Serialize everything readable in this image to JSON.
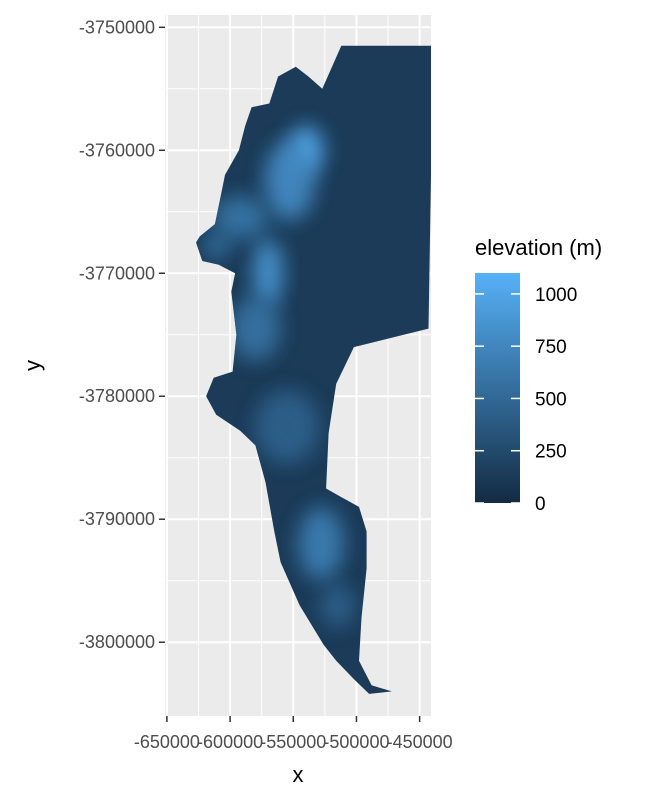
{
  "chart_data": {
    "type": "heatmap",
    "title": "",
    "xlabel": "x",
    "ylabel": "y",
    "xlim": [
      -651500,
      -441000
    ],
    "ylim": [
      -3806000,
      -3749000
    ],
    "grid": true,
    "x_ticks": [
      {
        "value": -650000,
        "label": "-650000"
      },
      {
        "value": -600000,
        "label": "-600000"
      },
      {
        "value": -550000,
        "label": "-550000"
      },
      {
        "value": -500000,
        "label": "-500000"
      },
      {
        "value": -450000,
        "label": "-450000"
      }
    ],
    "y_ticks": [
      {
        "value": -3750000,
        "label": "-3750000"
      },
      {
        "value": -3760000,
        "label": "-3760000"
      },
      {
        "value": -3770000,
        "label": "-3770000"
      },
      {
        "value": -3780000,
        "label": "-3780000"
      },
      {
        "value": -3790000,
        "label": "-3790000"
      },
      {
        "value": -3800000,
        "label": "-3800000"
      }
    ],
    "legend": {
      "title": "elevation (m)",
      "position": "right",
      "range": [
        0,
        1100
      ],
      "low_color": "#132B43",
      "high_color": "#56B1F7",
      "ticks": [
        {
          "value": 0,
          "label": "0"
        },
        {
          "value": 250,
          "label": "250"
        },
        {
          "value": 500,
          "label": "500"
        },
        {
          "value": 750,
          "label": "750"
        },
        {
          "value": 1000,
          "label": "1000"
        }
      ]
    },
    "region_outline": [
      [
        -512000,
        -3751500
      ],
      [
        -441000,
        -3751500
      ],
      [
        -441000,
        -3762000
      ],
      [
        -443000,
        -3774500
      ],
      [
        -502000,
        -3776000
      ],
      [
        -516000,
        -3779000
      ],
      [
        -522000,
        -3783000
      ],
      [
        -524000,
        -3787500
      ],
      [
        -512000,
        -3788200
      ],
      [
        -498000,
        -3789000
      ],
      [
        -492000,
        -3791000
      ],
      [
        -492000,
        -3794000
      ],
      [
        -496000,
        -3798000
      ],
      [
        -498000,
        -3801500
      ],
      [
        -488000,
        -3803500
      ],
      [
        -472000,
        -3804000
      ],
      [
        -490000,
        -3804200
      ],
      [
        -502000,
        -3803000
      ],
      [
        -516000,
        -3801500
      ],
      [
        -526000,
        -3800200
      ],
      [
        -545000,
        -3797000
      ],
      [
        -560000,
        -3793500
      ],
      [
        -565000,
        -3791000
      ],
      [
        -572000,
        -3787000
      ],
      [
        -580000,
        -3784000
      ],
      [
        -592000,
        -3782800
      ],
      [
        -611000,
        -3781500
      ],
      [
        -619000,
        -3780000
      ],
      [
        -613000,
        -3778500
      ],
      [
        -598000,
        -3778000
      ],
      [
        -595000,
        -3775000
      ],
      [
        -599000,
        -3771500
      ],
      [
        -596000,
        -3770000
      ],
      [
        -609000,
        -3769300
      ],
      [
        -622000,
        -3769000
      ],
      [
        -627000,
        -3767500
      ],
      [
        -624000,
        -3767000
      ],
      [
        -612000,
        -3766000
      ],
      [
        -608000,
        -3764000
      ],
      [
        -604000,
        -3762000
      ],
      [
        -593000,
        -3760000
      ],
      [
        -588000,
        -3758000
      ],
      [
        -583000,
        -3756500
      ],
      [
        -569000,
        -3756200
      ],
      [
        -562000,
        -3754000
      ],
      [
        -548000,
        -3753200
      ],
      [
        -538000,
        -3754000
      ],
      [
        -527000,
        -3755000
      ]
    ],
    "highlands": [
      {
        "x": -540000,
        "y": -3760000,
        "rx": 14000,
        "ry": 2000,
        "elevation": 1050
      },
      {
        "x": -553000,
        "y": -3762500,
        "rx": 20000,
        "ry": 3200,
        "elevation": 800
      },
      {
        "x": -592000,
        "y": -3765500,
        "rx": 22000,
        "ry": 1800,
        "elevation": 620
      },
      {
        "x": -570000,
        "y": -3770000,
        "rx": 12000,
        "ry": 2800,
        "elevation": 900
      },
      {
        "x": -611000,
        "y": -3767800,
        "rx": 11000,
        "ry": 1000,
        "elevation": 620
      },
      {
        "x": -580000,
        "y": -3774500,
        "rx": 20000,
        "ry": 2600,
        "elevation": 600
      },
      {
        "x": -555000,
        "y": -3782500,
        "rx": 26000,
        "ry": 3000,
        "elevation": 450
      },
      {
        "x": -528000,
        "y": -3792000,
        "rx": 18000,
        "ry": 3000,
        "elevation": 700
      },
      {
        "x": -515000,
        "y": -3797000,
        "rx": 14000,
        "ry": 1800,
        "elevation": 450
      }
    ]
  }
}
